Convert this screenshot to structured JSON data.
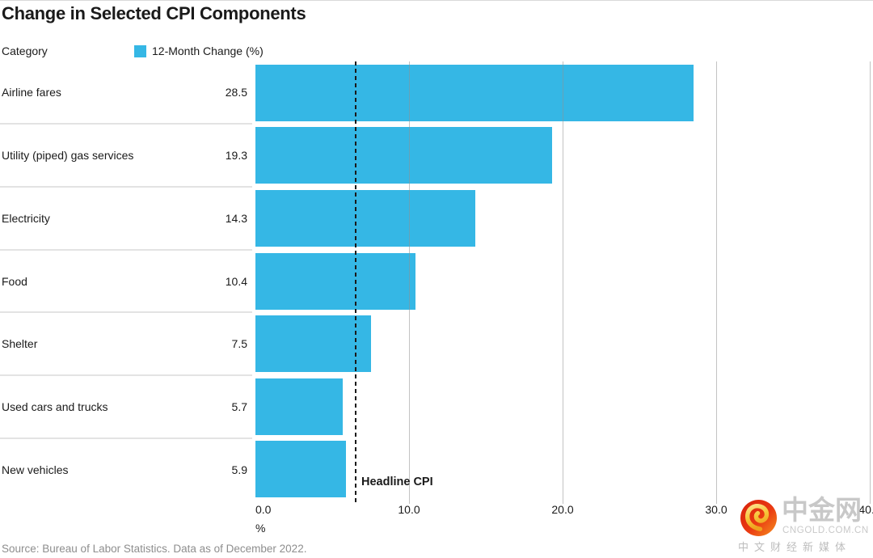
{
  "chart_data": {
    "type": "bar",
    "orientation": "horizontal",
    "title": "Change in Selected CPI Components",
    "categories_header": "Category",
    "series_name": "12-Month Change (%)",
    "categories": [
      "Airline fares",
      "Utility (piped) gas services",
      "Electricity",
      "Food",
      "Shelter",
      "Used cars and trucks",
      "New vehicles"
    ],
    "values": [
      28.5,
      19.3,
      14.3,
      10.4,
      7.5,
      5.7,
      5.9
    ],
    "bar_color": "#35b7e5",
    "xlabel": "%",
    "x_ticks": [
      0,
      10,
      20,
      30,
      40
    ],
    "xlim": [
      0,
      40.2
    ],
    "grid": true,
    "legend_position": "top",
    "value_labels_shown": true,
    "reference_line": {
      "label": "Headline CPI",
      "value": 6.5
    }
  },
  "source": "Source: Bureau of Labor Statistics. Data as of December 2022.",
  "watermark": {
    "brand": "中金网",
    "domain": "CNGOLD.COM.CN",
    "tagline": "中文财经新媒体",
    "logo_colors": {
      "red": "#e73413",
      "orange": "#f6921e",
      "gold": "#f7c73c"
    }
  }
}
